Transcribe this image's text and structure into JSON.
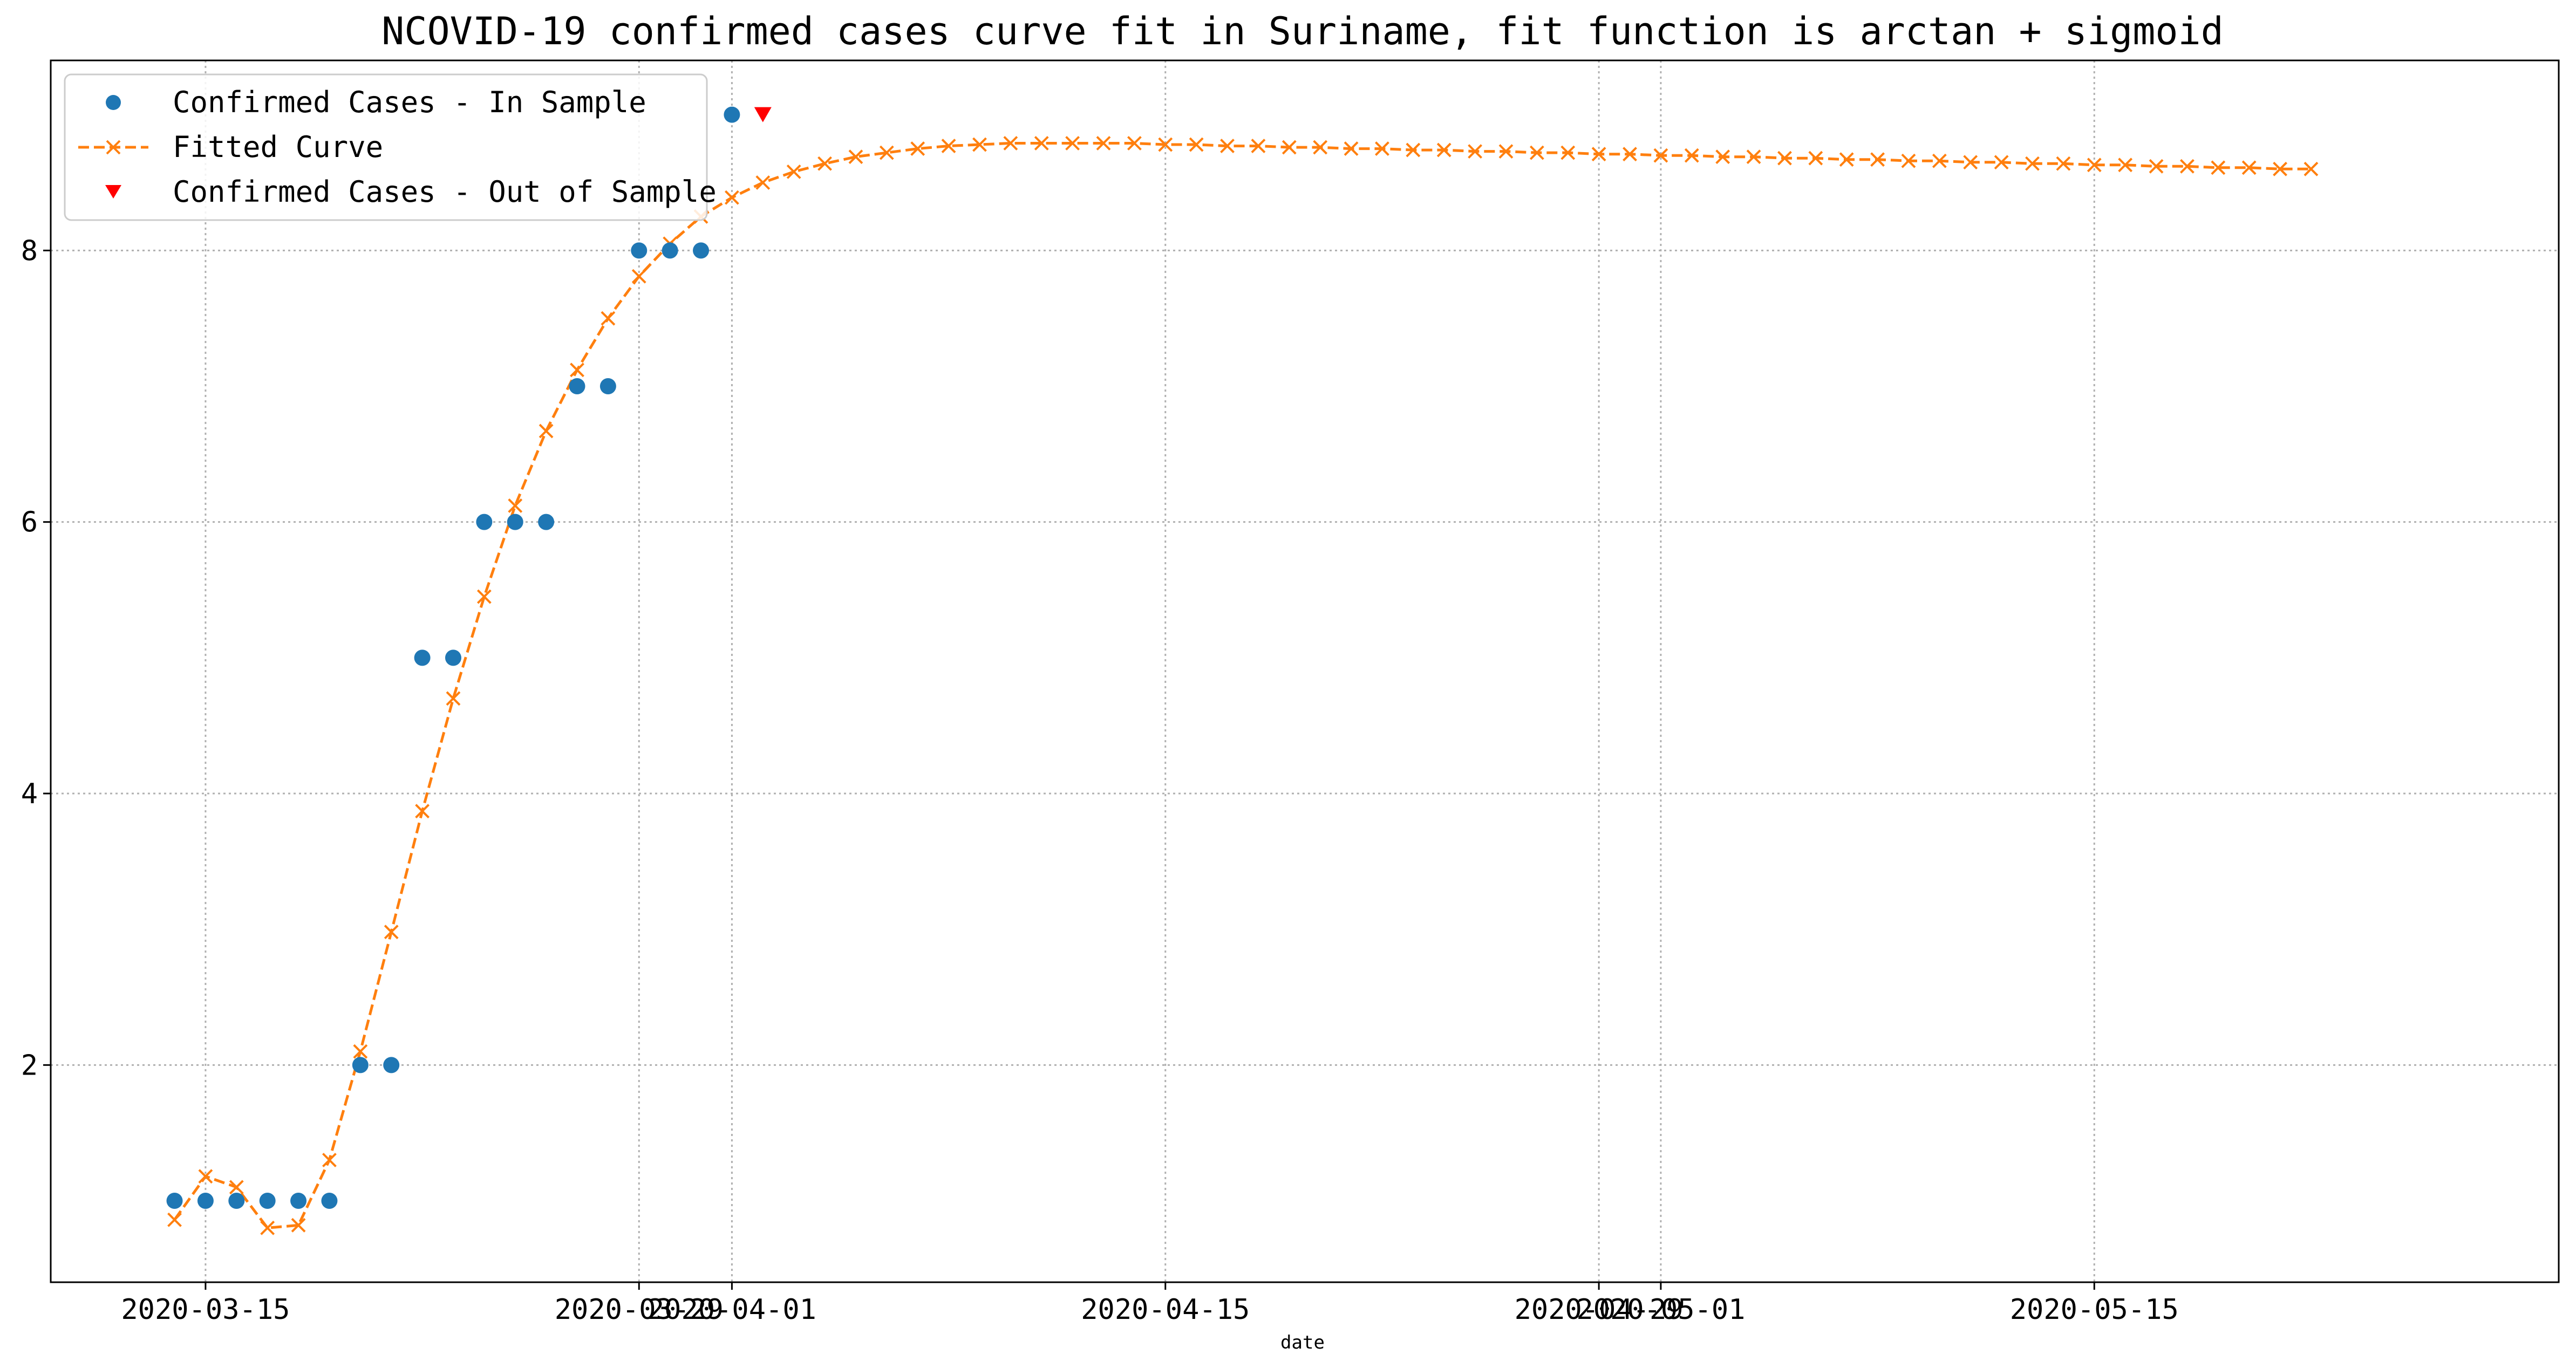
{
  "chart_data": {
    "type": "line",
    "title": "NCOVID-19 confirmed cases curve fit in Suriname, fit function is arctan + sigmoid",
    "xlabel": "date",
    "ylabel": "",
    "x_range": [
      "2020-03-10",
      "2020-05-30"
    ],
    "ylim": [
      0.4,
      9.4
    ],
    "grid": true,
    "legend_position": "top-left",
    "x_ticks": [
      {
        "date": "2020-03-15",
        "label": "2020-03-15"
      },
      {
        "date": "2020-03-29",
        "label": "2020-03-29"
      },
      {
        "date": "2020-04-01",
        "label": "2020-04-01"
      },
      {
        "date": "2020-04-15",
        "label": "2020-04-15"
      },
      {
        "date": "2020-04-29",
        "label": "2020-04-29"
      },
      {
        "date": "2020-05-01",
        "label": "2020-05-01"
      },
      {
        "date": "2020-05-15",
        "label": "2020-05-15"
      }
    ],
    "y_ticks": [
      2,
      4,
      6,
      8
    ],
    "series": [
      {
        "name": "Confirmed Cases - In Sample",
        "color": "#1f77b4",
        "marker": "circle",
        "x": [
          "2020-03-14",
          "2020-03-15",
          "2020-03-16",
          "2020-03-17",
          "2020-03-18",
          "2020-03-19",
          "2020-03-20",
          "2020-03-21",
          "2020-03-22",
          "2020-03-23",
          "2020-03-24",
          "2020-03-25",
          "2020-03-26",
          "2020-03-27",
          "2020-03-28",
          "2020-03-29",
          "2020-03-30",
          "2020-03-31",
          "2020-04-01"
        ],
        "values": [
          1,
          1,
          1,
          1,
          1,
          1,
          2,
          2,
          5,
          5,
          6,
          6,
          6,
          7,
          7,
          8,
          8,
          8,
          9
        ]
      },
      {
        "name": "Fitted Curve",
        "color": "#ff7f0e",
        "marker": "x",
        "line_style": "dashed",
        "x_start": "2020-03-14",
        "x_end": "2020-05-22",
        "values": [
          0.86,
          1.18,
          1.1,
          0.8,
          0.82,
          1.3,
          2.1,
          2.98,
          3.87,
          4.7,
          5.45,
          6.12,
          6.67,
          7.12,
          7.5,
          7.81,
          8.05,
          8.25,
          8.39,
          8.5,
          8.58,
          8.64,
          8.69,
          8.72,
          8.75,
          8.77,
          8.78,
          8.79,
          8.79,
          8.79,
          8.79,
          8.79,
          8.78,
          8.78,
          8.77,
          8.77,
          8.76,
          8.76,
          8.75,
          8.75,
          8.74,
          8.74,
          8.73,
          8.73,
          8.72,
          8.72,
          8.71,
          8.71,
          8.7,
          8.7,
          8.69,
          8.69,
          8.68,
          8.68,
          8.67,
          8.67,
          8.66,
          8.66,
          8.65,
          8.65,
          8.64,
          8.64,
          8.63,
          8.63,
          8.62,
          8.62,
          8.61,
          8.61,
          8.6,
          8.6
        ]
      },
      {
        "name": "Confirmed Cases - Out of Sample",
        "color": "#ff0000",
        "marker": "triangle-down",
        "x": [
          "2020-04-02"
        ],
        "values": [
          9
        ]
      }
    ]
  }
}
